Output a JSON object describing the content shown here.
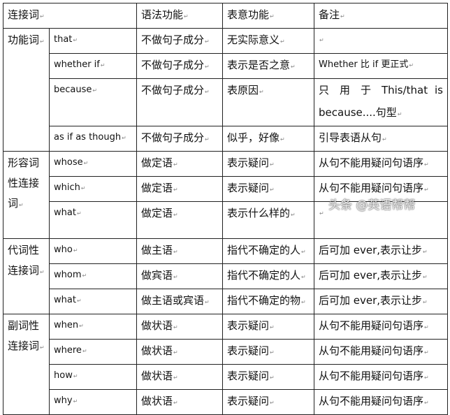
{
  "header": [
    "连接词",
    "语法功能",
    "表意功能",
    "备注"
  ],
  "groups": [
    {
      "label": "功能词",
      "rows": [
        {
          "word": "that",
          "grammar": "不做句子成分",
          "meaning": "无实际意义",
          "note": ""
        },
        {
          "word": "whether if",
          "grammar": "不做句子成分",
          "meaning": "表示是否之意",
          "note": "Whether 比 if 更正式"
        },
        {
          "word": "because",
          "grammar": "不做句子成分",
          "meaning": "表原因",
          "note": "只 用 于 This/that is because....句型"
        },
        {
          "word": "as if as though",
          "grammar": "不做句子成分",
          "meaning": "似乎，好像",
          "note": "引导表语从句"
        }
      ]
    },
    {
      "label": "形容词性连接词",
      "rows": [
        {
          "word": "whose",
          "grammar": "做定语",
          "meaning": "表示疑问",
          "note": "从句不能用疑问句语序"
        },
        {
          "word": "which",
          "grammar": "做定语",
          "meaning": "表示疑问",
          "note": "从句不能用疑问句语序"
        },
        {
          "word": "what",
          "grammar": "做定语",
          "meaning": "表示什么样的",
          "note": ""
        }
      ]
    },
    {
      "label": "代词性连接词",
      "rows": [
        {
          "word": "who",
          "grammar": "做主语",
          "meaning": "指代不确定的人",
          "note": "后可加 ever,表示让步"
        },
        {
          "word": "whom",
          "grammar": "做宾语",
          "meaning": "指代不确定的人",
          "note": "后可加 ever,表示让步"
        },
        {
          "word": "what",
          "grammar": "做主语或宾语",
          "meaning": "指代不确定的物",
          "note": "后可加 ever,表示让步"
        }
      ]
    },
    {
      "label": "副词性连接词",
      "rows": [
        {
          "word": "when",
          "grammar": "做状语",
          "meaning": "表示疑问",
          "note": "从句不能用疑问句语序"
        },
        {
          "word": "where",
          "grammar": "做状语",
          "meaning": "表示疑问",
          "note": "从句不能用疑问句语序"
        },
        {
          "word": "how",
          "grammar": "做状语",
          "meaning": "表示疑问",
          "note": "从句不能用疑问句语序"
        },
        {
          "word": "why",
          "grammar": "做状语",
          "meaning": "表示疑问",
          "note": "从句不能用疑问句语序"
        }
      ]
    }
  ],
  "watermark": "头条 @英语帮帮"
}
